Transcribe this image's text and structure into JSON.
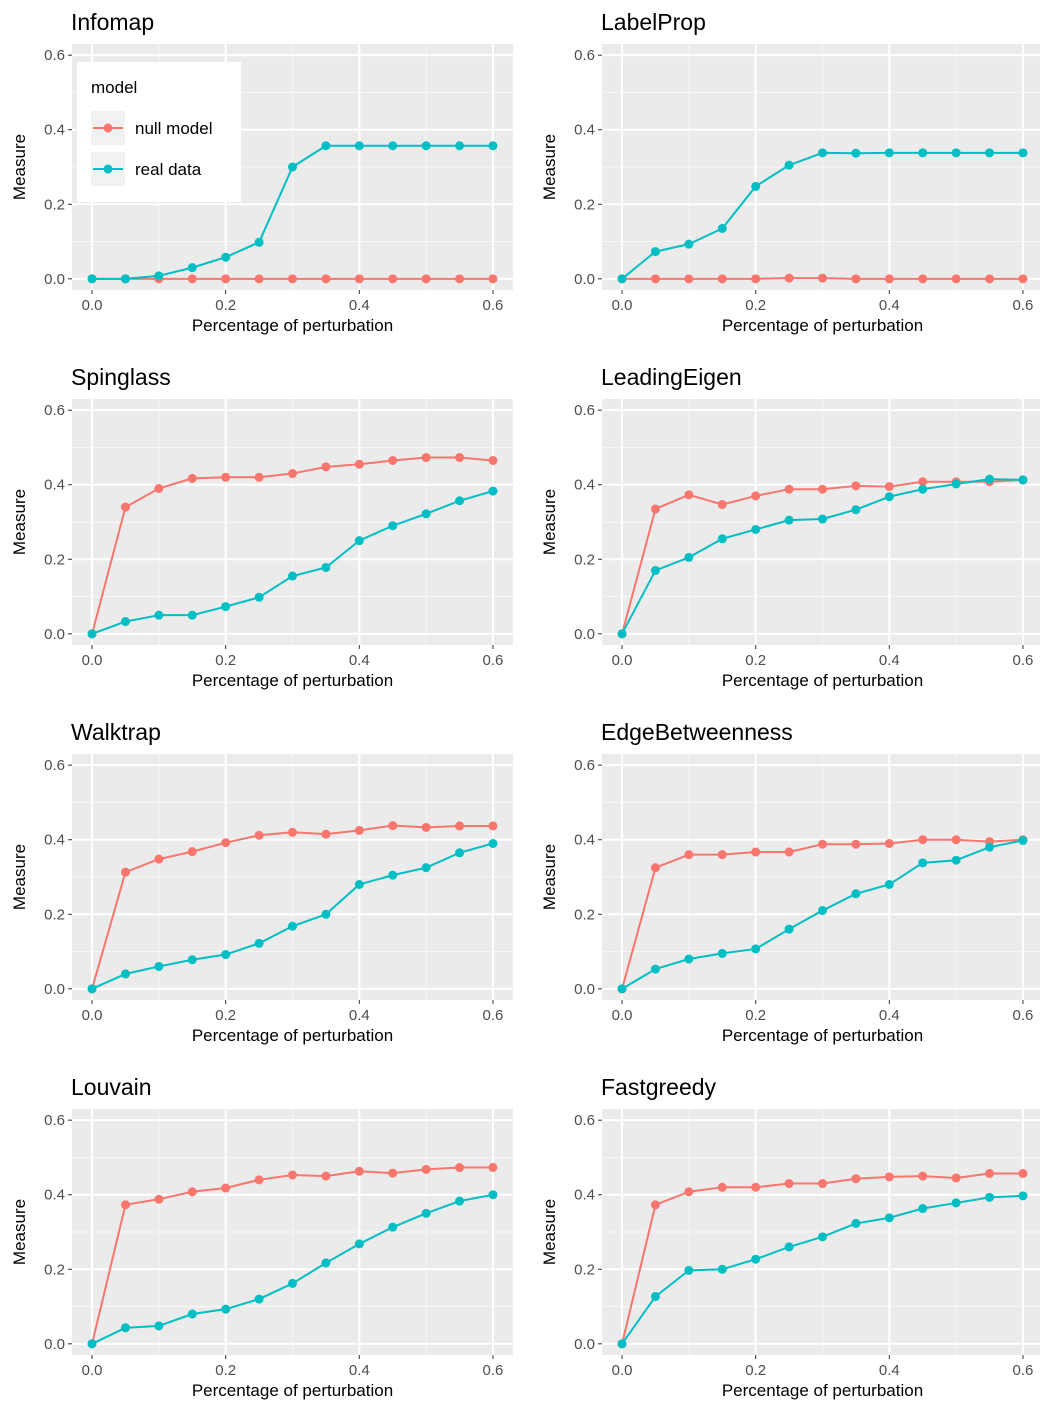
{
  "legend": {
    "title": "model",
    "entries": [
      {
        "name": "null model",
        "color": "#F8766D"
      },
      {
        "name": "real data",
        "color": "#00BFC4"
      }
    ],
    "placement": "inside top-left of first panel"
  },
  "chart_data": [
    {
      "type": "line",
      "title": "Infomap",
      "xlabel": "Percentage of perturbation",
      "ylabel": "Measure",
      "xlim": [
        0,
        0.6
      ],
      "ylim": [
        0,
        0.6
      ],
      "xticks": [
        0.0,
        0.2,
        0.4,
        0.6
      ],
      "yticks": [
        0.0,
        0.2,
        0.4,
        0.6
      ],
      "xtick_labels": [
        "0.0",
        "0.2",
        "0.4",
        "0.6"
      ],
      "ytick_labels": [
        "0.0",
        "0.2",
        "0.4",
        "0.6"
      ],
      "x": [
        0.0,
        0.05,
        0.1,
        0.15,
        0.2,
        0.25,
        0.3,
        0.35,
        0.4,
        0.45,
        0.5,
        0.55,
        0.6
      ],
      "series": [
        {
          "name": "null model",
          "color": "#F8766D",
          "values": [
            0,
            0,
            0,
            0,
            0,
            0,
            0,
            0,
            0,
            0,
            0,
            0,
            0
          ]
        },
        {
          "name": "real data",
          "color": "#00BFC4",
          "values": [
            0,
            0,
            0.008,
            0.03,
            0.058,
            0.098,
            0.3,
            0.357,
            0.357,
            0.357,
            0.357,
            0.357,
            0.357
          ]
        }
      ]
    },
    {
      "type": "line",
      "title": "LabelProp",
      "xlabel": "Percentage of perturbation",
      "ylabel": "Measure",
      "xlim": [
        0,
        0.6
      ],
      "ylim": [
        0,
        0.6
      ],
      "xticks": [
        0.0,
        0.2,
        0.4,
        0.6
      ],
      "yticks": [
        0.0,
        0.2,
        0.4,
        0.6
      ],
      "xtick_labels": [
        "0.0",
        "0.2",
        "0.4",
        "0.6"
      ],
      "ytick_labels": [
        "0.0",
        "0.2",
        "0.4",
        "0.6"
      ],
      "x": [
        0.0,
        0.05,
        0.1,
        0.15,
        0.2,
        0.25,
        0.3,
        0.35,
        0.4,
        0.45,
        0.5,
        0.55,
        0.6
      ],
      "series": [
        {
          "name": "null model",
          "color": "#F8766D",
          "values": [
            0,
            0,
            0,
            0,
            0,
            0.002,
            0.002,
            0,
            0,
            0,
            0,
            0,
            0
          ]
        },
        {
          "name": "real data",
          "color": "#00BFC4",
          "values": [
            0,
            0.073,
            0.093,
            0.135,
            0.248,
            0.305,
            0.338,
            0.337,
            0.338,
            0.338,
            0.338,
            0.338,
            0.338
          ]
        }
      ]
    },
    {
      "type": "line",
      "title": "Spinglass",
      "xlabel": "Percentage of perturbation",
      "ylabel": "Measure",
      "xlim": [
        0,
        0.6
      ],
      "ylim": [
        0,
        0.6
      ],
      "xticks": [
        0.0,
        0.2,
        0.4,
        0.6
      ],
      "yticks": [
        0.0,
        0.2,
        0.4,
        0.6
      ],
      "xtick_labels": [
        "0.0",
        "0.2",
        "0.4",
        "0.6"
      ],
      "ytick_labels": [
        "0.0",
        "0.2",
        "0.4",
        "0.6"
      ],
      "x": [
        0.0,
        0.05,
        0.1,
        0.15,
        0.2,
        0.25,
        0.3,
        0.35,
        0.4,
        0.45,
        0.5,
        0.55,
        0.6
      ],
      "series": [
        {
          "name": "null model",
          "color": "#F8766D",
          "values": [
            0,
            0.34,
            0.39,
            0.417,
            0.42,
            0.42,
            0.43,
            0.448,
            0.455,
            0.465,
            0.473,
            0.473,
            0.465
          ]
        },
        {
          "name": "real data",
          "color": "#00BFC4",
          "values": [
            0,
            0.033,
            0.05,
            0.05,
            0.073,
            0.098,
            0.155,
            0.178,
            0.25,
            0.29,
            0.322,
            0.357,
            0.383
          ]
        }
      ]
    },
    {
      "type": "line",
      "title": "LeadingEigen",
      "xlabel": "Percentage of perturbation",
      "ylabel": "Measure",
      "xlim": [
        0,
        0.6
      ],
      "ylim": [
        0,
        0.6
      ],
      "xticks": [
        0.0,
        0.2,
        0.4,
        0.6
      ],
      "yticks": [
        0.0,
        0.2,
        0.4,
        0.6
      ],
      "xtick_labels": [
        "0.0",
        "0.2",
        "0.4",
        "0.6"
      ],
      "ytick_labels": [
        "0.0",
        "0.2",
        "0.4",
        "0.6"
      ],
      "x": [
        0.0,
        0.05,
        0.1,
        0.15,
        0.2,
        0.25,
        0.3,
        0.35,
        0.4,
        0.45,
        0.5,
        0.55,
        0.6
      ],
      "series": [
        {
          "name": "null model",
          "color": "#F8766D",
          "values": [
            0,
            0.335,
            0.373,
            0.347,
            0.37,
            0.388,
            0.388,
            0.397,
            0.395,
            0.408,
            0.408,
            0.408,
            0.413
          ]
        },
        {
          "name": "real data",
          "color": "#00BFC4",
          "values": [
            0,
            0.17,
            0.205,
            0.255,
            0.28,
            0.305,
            0.308,
            0.333,
            0.368,
            0.388,
            0.402,
            0.415,
            0.413
          ]
        }
      ]
    },
    {
      "type": "line",
      "title": "Walktrap",
      "xlabel": "Percentage of perturbation",
      "ylabel": "Measure",
      "xlim": [
        0,
        0.6
      ],
      "ylim": [
        0,
        0.6
      ],
      "xticks": [
        0.0,
        0.2,
        0.4,
        0.6
      ],
      "yticks": [
        0.0,
        0.2,
        0.4,
        0.6
      ],
      "xtick_labels": [
        "0.0",
        "0.2",
        "0.4",
        "0.6"
      ],
      "ytick_labels": [
        "0.0",
        "0.2",
        "0.4",
        "0.6"
      ],
      "x": [
        0.0,
        0.05,
        0.1,
        0.15,
        0.2,
        0.25,
        0.3,
        0.35,
        0.4,
        0.45,
        0.5,
        0.55,
        0.6
      ],
      "series": [
        {
          "name": "null model",
          "color": "#F8766D",
          "values": [
            0,
            0.313,
            0.348,
            0.368,
            0.392,
            0.412,
            0.42,
            0.415,
            0.425,
            0.438,
            0.433,
            0.437,
            0.437
          ]
        },
        {
          "name": "real data",
          "color": "#00BFC4",
          "values": [
            0,
            0.04,
            0.06,
            0.078,
            0.092,
            0.122,
            0.168,
            0.2,
            0.28,
            0.305,
            0.325,
            0.365,
            0.39
          ]
        }
      ]
    },
    {
      "type": "line",
      "title": "EdgeBetweenness",
      "xlabel": "Percentage of perturbation",
      "ylabel": "Measure",
      "xlim": [
        0,
        0.6
      ],
      "ylim": [
        0,
        0.6
      ],
      "xticks": [
        0.0,
        0.2,
        0.4,
        0.6
      ],
      "yticks": [
        0.0,
        0.2,
        0.4,
        0.6
      ],
      "xtick_labels": [
        "0.0",
        "0.2",
        "0.4",
        "0.6"
      ],
      "ytick_labels": [
        "0.0",
        "0.2",
        "0.4",
        "0.6"
      ],
      "x": [
        0.0,
        0.05,
        0.1,
        0.15,
        0.2,
        0.25,
        0.3,
        0.35,
        0.4,
        0.45,
        0.5,
        0.55,
        0.6
      ],
      "series": [
        {
          "name": "null model",
          "color": "#F8766D",
          "values": [
            0,
            0.325,
            0.36,
            0.36,
            0.367,
            0.367,
            0.388,
            0.388,
            0.39,
            0.4,
            0.4,
            0.395,
            0.4
          ]
        },
        {
          "name": "real data",
          "color": "#00BFC4",
          "values": [
            0,
            0.053,
            0.08,
            0.095,
            0.107,
            0.16,
            0.21,
            0.255,
            0.28,
            0.338,
            0.345,
            0.38,
            0.398
          ]
        }
      ]
    },
    {
      "type": "line",
      "title": "Louvain",
      "xlabel": "Percentage of perturbation",
      "ylabel": "Measure",
      "xlim": [
        0,
        0.6
      ],
      "ylim": [
        0,
        0.6
      ],
      "xticks": [
        0.0,
        0.2,
        0.4,
        0.6
      ],
      "yticks": [
        0.0,
        0.2,
        0.4,
        0.6
      ],
      "xtick_labels": [
        "0.0",
        "0.2",
        "0.4",
        "0.6"
      ],
      "ytick_labels": [
        "0.0",
        "0.2",
        "0.4",
        "0.6"
      ],
      "x": [
        0.0,
        0.05,
        0.1,
        0.15,
        0.2,
        0.25,
        0.3,
        0.35,
        0.4,
        0.45,
        0.5,
        0.55,
        0.6
      ],
      "series": [
        {
          "name": "null model",
          "color": "#F8766D",
          "values": [
            0,
            0.373,
            0.388,
            0.408,
            0.418,
            0.44,
            0.453,
            0.45,
            0.463,
            0.458,
            0.468,
            0.473,
            0.473
          ]
        },
        {
          "name": "real data",
          "color": "#00BFC4",
          "values": [
            0,
            0.043,
            0.048,
            0.08,
            0.093,
            0.12,
            0.162,
            0.217,
            0.268,
            0.313,
            0.35,
            0.383,
            0.4
          ]
        }
      ]
    },
    {
      "type": "line",
      "title": "Fastgreedy",
      "xlabel": "Percentage of perturbation",
      "ylabel": "Measure",
      "xlim": [
        0,
        0.6
      ],
      "ylim": [
        0,
        0.6
      ],
      "xticks": [
        0.0,
        0.2,
        0.4,
        0.6
      ],
      "yticks": [
        0.0,
        0.2,
        0.4,
        0.6
      ],
      "xtick_labels": [
        "0.0",
        "0.2",
        "0.4",
        "0.6"
      ],
      "ytick_labels": [
        "0.0",
        "0.2",
        "0.4",
        "0.6"
      ],
      "x": [
        0.0,
        0.05,
        0.1,
        0.15,
        0.2,
        0.25,
        0.3,
        0.35,
        0.4,
        0.45,
        0.5,
        0.55,
        0.6
      ],
      "series": [
        {
          "name": "null model",
          "color": "#F8766D",
          "values": [
            0,
            0.373,
            0.408,
            0.42,
            0.42,
            0.43,
            0.43,
            0.443,
            0.448,
            0.45,
            0.445,
            0.457,
            0.457
          ]
        },
        {
          "name": "real data",
          "color": "#00BFC4",
          "values": [
            0,
            0.127,
            0.197,
            0.2,
            0.227,
            0.26,
            0.287,
            0.323,
            0.338,
            0.363,
            0.378,
            0.393,
            0.397
          ]
        }
      ]
    }
  ]
}
